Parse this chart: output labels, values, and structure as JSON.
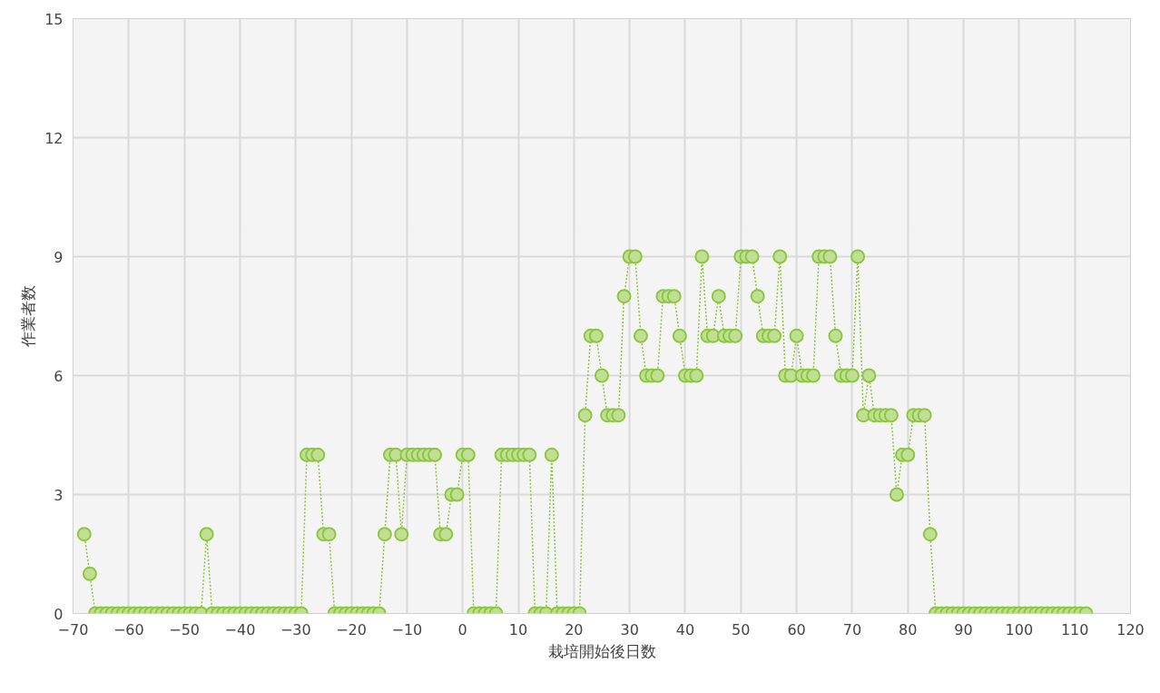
{
  "chart_data": {
    "type": "line",
    "xlabel": "栽培開始後日数",
    "ylabel": "作業者数",
    "xlim": [
      -70,
      120
    ],
    "xticks": [
      -70,
      -60,
      -50,
      -40,
      -30,
      -20,
      -10,
      0,
      10,
      20,
      30,
      40,
      50,
      60,
      70,
      80,
      90,
      100,
      110,
      120
    ],
    "ylim": [
      0,
      15
    ],
    "yticks": [
      0,
      3,
      6,
      9,
      12,
      15
    ],
    "grid": true,
    "marker": "circle",
    "line_style": "dotted",
    "series": [
      {
        "color": "#8dc63f",
        "x": [
          -68,
          -67,
          -66,
          -65,
          -64,
          -63,
          -62,
          -61,
          -60,
          -59,
          -58,
          -57,
          -56,
          -55,
          -54,
          -53,
          -52,
          -51,
          -50,
          -49,
          -48,
          -47,
          -46,
          -45,
          -44,
          -43,
          -42,
          -41,
          -40,
          -39,
          -38,
          -37,
          -36,
          -35,
          -34,
          -33,
          -32,
          -31,
          -30,
          -29,
          -28,
          -27,
          -26,
          -25,
          -24,
          -23,
          -22,
          -21,
          -20,
          -19,
          -18,
          -17,
          -16,
          -15,
          -14,
          -13,
          -12,
          -11,
          -10,
          -9,
          -8,
          -7,
          -6,
          -5,
          -4,
          -3,
          -2,
          -1,
          0,
          1,
          2,
          3,
          4,
          5,
          6,
          7,
          8,
          9,
          10,
          11,
          12,
          13,
          14,
          15,
          16,
          17,
          18,
          19,
          20,
          21,
          22,
          23,
          24,
          25,
          26,
          27,
          28,
          29,
          30,
          31,
          32,
          33,
          34,
          35,
          36,
          37,
          38,
          39,
          40,
          41,
          42,
          43,
          44,
          45,
          46,
          47,
          48,
          49,
          50,
          51,
          52,
          53,
          54,
          55,
          56,
          57,
          58,
          59,
          60,
          61,
          62,
          63,
          64,
          65,
          66,
          67,
          68,
          69,
          70,
          71,
          72,
          73,
          74,
          75,
          76,
          77,
          78,
          79,
          80,
          81,
          82,
          83,
          84,
          85,
          86,
          87,
          88,
          89,
          90,
          91,
          92,
          93,
          94,
          95,
          96,
          97,
          98,
          99,
          100,
          101,
          102,
          103,
          104,
          105,
          106,
          107,
          108,
          109,
          110,
          111,
          112
        ],
        "values": [
          2,
          1,
          0,
          0,
          0,
          0,
          0,
          0,
          0,
          0,
          0,
          0,
          0,
          0,
          0,
          0,
          0,
          0,
          0,
          0,
          0,
          0,
          2,
          0,
          0,
          0,
          0,
          0,
          0,
          0,
          0,
          0,
          0,
          0,
          0,
          0,
          0,
          0,
          0,
          0,
          4,
          4,
          4,
          2,
          2,
          0,
          0,
          0,
          0,
          0,
          0,
          0,
          0,
          0,
          2,
          4,
          4,
          2,
          4,
          4,
          4,
          4,
          4,
          4,
          2,
          2,
          3,
          3,
          4,
          4,
          0,
          0,
          0,
          0,
          0,
          4,
          4,
          4,
          4,
          4,
          4,
          0,
          0,
          0,
          4,
          0,
          0,
          0,
          0,
          0,
          5,
          7,
          7,
          6,
          5,
          5,
          5,
          8,
          9,
          9,
          7,
          6,
          6,
          6,
          8,
          8,
          8,
          7,
          6,
          6,
          6,
          9,
          7,
          7,
          8,
          7,
          7,
          7,
          9,
          9,
          9,
          8,
          7,
          7,
          7,
          9,
          6,
          6,
          7,
          6,
          6,
          6,
          9,
          9,
          9,
          7,
          6,
          6,
          6,
          9,
          5,
          6,
          5,
          5,
          5,
          5,
          3,
          4,
          4,
          5,
          5,
          5,
          2,
          0,
          0,
          0,
          0,
          0,
          0,
          0,
          0,
          0,
          0,
          0,
          0,
          0,
          0,
          0,
          0,
          0,
          0,
          0,
          0,
          0,
          0,
          0,
          0,
          0,
          0,
          0,
          0
        ]
      }
    ]
  }
}
